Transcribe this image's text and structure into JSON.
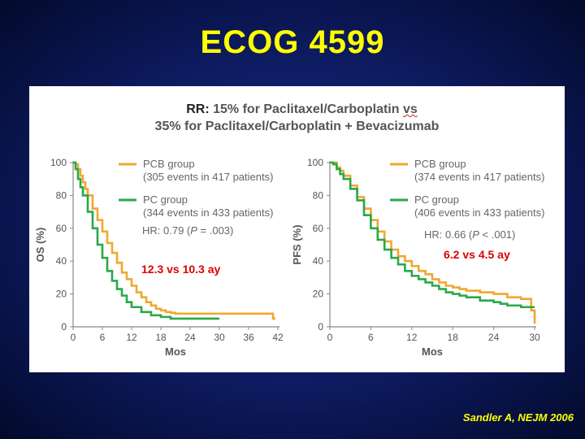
{
  "slide": {
    "title": "ECOG 4599",
    "citation": "Sandler A, NEJM 2006"
  },
  "figure": {
    "heading_line1_prefix": "RR:",
    "heading_line1_rest": " 15% for Paclitaxel/Carboplatin ",
    "heading_line1_vs": "vs",
    "heading_line2": "35% for Paclitaxel/Carboplatin + Bevacizumab"
  },
  "colors": {
    "pcb": "#f0a830",
    "pc": "#2aa84a",
    "annotation": "#dd0000",
    "title": "#ffff00"
  },
  "chart_data": [
    {
      "type": "line",
      "name": "os",
      "xlabel": "Mos",
      "ylabel": "OS (%)",
      "xlim": [
        0,
        42
      ],
      "ylim": [
        0,
        100
      ],
      "xticks": [
        "0",
        "6",
        "12",
        "18",
        "24",
        "30",
        "36",
        "42"
      ],
      "yticks": [
        "0",
        "20",
        "40",
        "60",
        "80",
        "100"
      ],
      "legend": [
        {
          "label": "PCB group",
          "sublabel": "(305 events in 417 patients)",
          "color": "#f0a830"
        },
        {
          "label": "PC group",
          "sublabel": "(344 events in 433 patients)",
          "color": "#2aa84a"
        }
      ],
      "hr_text": "HR: 0.79 (",
      "hr_p": "P",
      "hr_rest": " = .003)",
      "annotation": "12.3 vs 10.3 ay",
      "series": [
        {
          "name": "PCB group",
          "color": "#f0a830",
          "x": [
            0,
            0.5,
            1,
            1.5,
            2,
            2.5,
            3,
            4,
            5,
            6,
            7,
            8,
            9,
            10,
            11,
            12,
            13,
            14,
            15,
            16,
            17,
            18,
            19,
            20,
            21,
            24,
            30,
            36,
            40,
            41,
            41.5
          ],
          "y": [
            100,
            99,
            96,
            92,
            88,
            84,
            80,
            72,
            65,
            58,
            51,
            45,
            39,
            33,
            29,
            25,
            21,
            18,
            15,
            13,
            11,
            10,
            9,
            8.5,
            8,
            8,
            8,
            8,
            8,
            5,
            5
          ]
        },
        {
          "name": "PC group",
          "color": "#2aa84a",
          "x": [
            0,
            0.5,
            1,
            1.5,
            2,
            3,
            4,
            5,
            6,
            7,
            8,
            9,
            10,
            11,
            12,
            14,
            16,
            18,
            20,
            24,
            28,
            30
          ],
          "y": [
            100,
            96,
            90,
            85,
            80,
            70,
            60,
            50,
            42,
            34,
            28,
            23,
            19,
            15,
            12,
            9,
            7,
            6,
            5,
            5,
            5,
            5
          ]
        }
      ]
    },
    {
      "type": "line",
      "name": "pfs",
      "xlabel": "Mos",
      "ylabel": "PFS (%)",
      "xlim": [
        0,
        30
      ],
      "ylim": [
        0,
        100
      ],
      "xticks": [
        "0",
        "6",
        "12",
        "18",
        "24",
        "30"
      ],
      "yticks": [
        "0",
        "20",
        "40",
        "60",
        "80",
        "100"
      ],
      "legend": [
        {
          "label": "PCB group",
          "sublabel": "(374 events in 417 patients)",
          "color": "#f0a830"
        },
        {
          "label": "PC group",
          "sublabel": "(406 events in 433 patients)",
          "color": "#2aa84a"
        }
      ],
      "hr_text": "HR: 0.66 (",
      "hr_p": "P",
      "hr_rest": " < .001)",
      "annotation": "6.2 vs 4.5 ay",
      "series": [
        {
          "name": "PCB group",
          "color": "#f0a830",
          "x": [
            0,
            0.5,
            1,
            1.5,
            2,
            3,
            4,
            5,
            6,
            7,
            8,
            9,
            10,
            11,
            12,
            13,
            14,
            15,
            16,
            17,
            18,
            19,
            20,
            22,
            24,
            26,
            28,
            29,
            29.5,
            30
          ],
          "y": [
            100,
            100,
            97,
            95,
            92,
            86,
            79,
            72,
            65,
            58,
            52,
            47,
            43,
            40,
            37,
            34,
            32,
            29,
            27,
            25,
            24,
            23,
            22,
            21,
            20,
            18,
            17,
            17,
            10,
            2
          ]
        },
        {
          "name": "PC group",
          "color": "#2aa84a",
          "x": [
            0,
            0.5,
            1,
            1.5,
            2,
            3,
            4,
            5,
            6,
            7,
            8,
            9,
            10,
            11,
            12,
            13,
            14,
            15,
            16,
            17,
            18,
            19,
            20,
            22,
            24,
            25,
            26,
            28,
            30
          ],
          "y": [
            100,
            99,
            96,
            93,
            90,
            84,
            77,
            68,
            60,
            53,
            47,
            42,
            38,
            34,
            31,
            29,
            27,
            25,
            23,
            21,
            20,
            19,
            18,
            16,
            15,
            14,
            13,
            12,
            12
          ]
        }
      ]
    }
  ]
}
